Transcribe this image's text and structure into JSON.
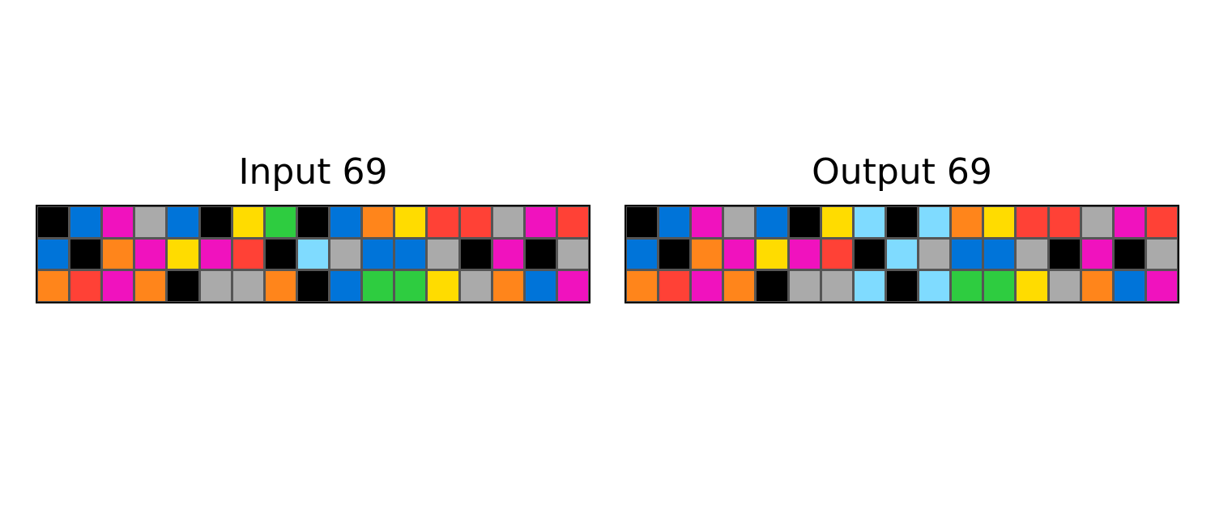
{
  "palette": {
    "0": "#000000",
    "1": "#0074D9",
    "2": "#FF4136",
    "3": "#2ECC40",
    "4": "#FFDC00",
    "5": "#AAAAAA",
    "6": "#F012BE",
    "7": "#FF851B",
    "8": "#7FDBFF"
  },
  "panels": [
    {
      "id": "input",
      "title": "Input 69",
      "grid": [
        [
          0,
          1,
          6,
          5,
          1,
          0,
          4,
          3,
          0,
          1,
          7,
          4,
          2,
          2,
          5,
          6,
          2
        ],
        [
          1,
          0,
          7,
          6,
          4,
          6,
          2,
          0,
          8,
          5,
          1,
          1,
          5,
          0,
          6,
          0,
          5
        ],
        [
          7,
          2,
          6,
          7,
          0,
          5,
          5,
          7,
          0,
          1,
          3,
          3,
          4,
          5,
          7,
          1,
          6
        ]
      ]
    },
    {
      "id": "output",
      "title": "Output 69",
      "grid": [
        [
          0,
          1,
          6,
          5,
          1,
          0,
          4,
          8,
          0,
          8,
          7,
          4,
          2,
          2,
          5,
          6,
          2
        ],
        [
          1,
          0,
          7,
          6,
          4,
          6,
          2,
          0,
          8,
          5,
          1,
          1,
          5,
          0,
          6,
          0,
          5
        ],
        [
          7,
          2,
          6,
          7,
          0,
          5,
          5,
          8,
          0,
          8,
          3,
          3,
          4,
          5,
          7,
          1,
          6
        ]
      ]
    }
  ]
}
